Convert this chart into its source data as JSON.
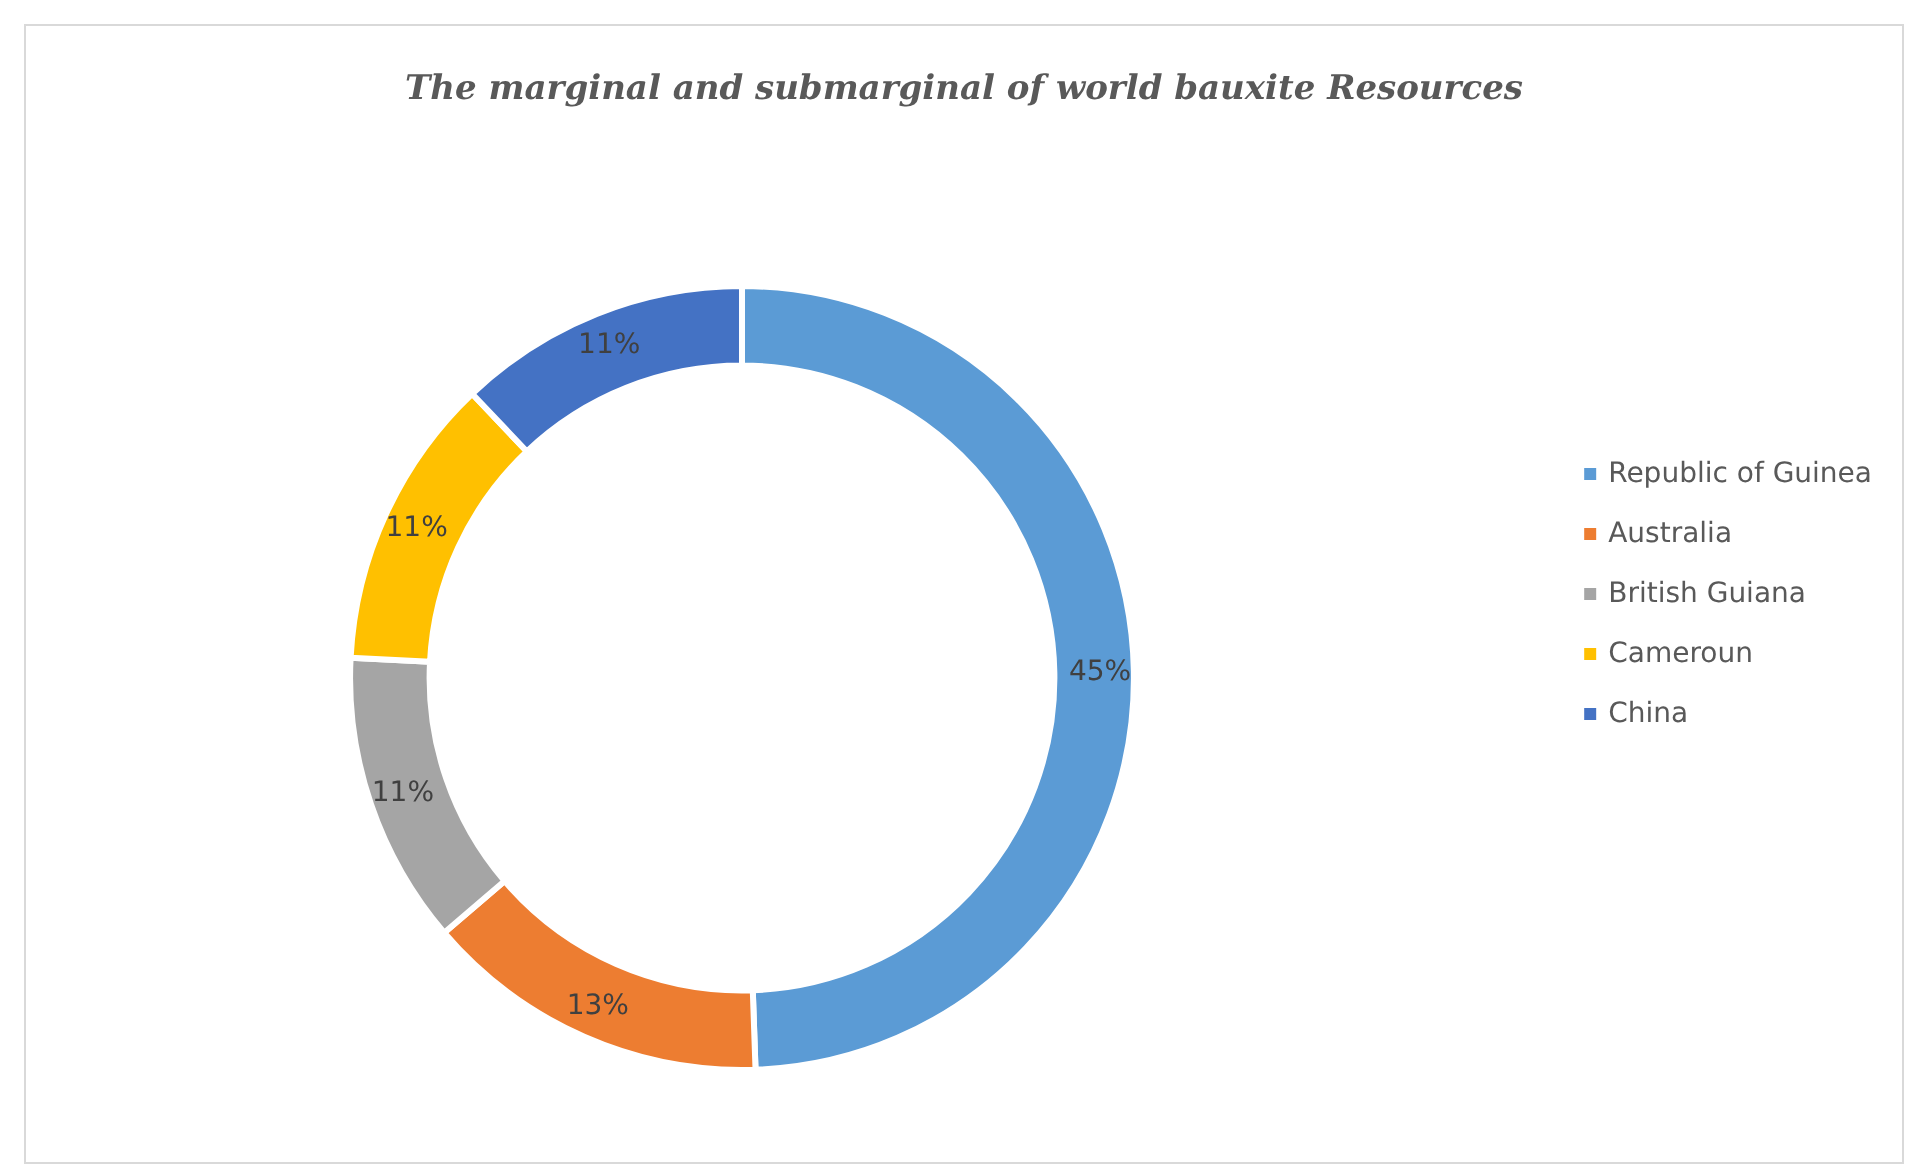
{
  "chart_data": {
    "type": "donut",
    "title": "The marginal and submarginal of world bauxite Resources",
    "categories": [
      "Republic of Guinea",
      "Australia",
      "British Guiana",
      "Cameroun",
      "China"
    ],
    "values": [
      45,
      13,
      11,
      11,
      11
    ],
    "value_labels": [
      "45%",
      "13%",
      "11%",
      "11%",
      "11%"
    ],
    "colors": [
      "#5b9bd5",
      "#ed7d31",
      "#a5a5a5",
      "#ffc000",
      "#4472c4"
    ],
    "legend": "right"
  }
}
